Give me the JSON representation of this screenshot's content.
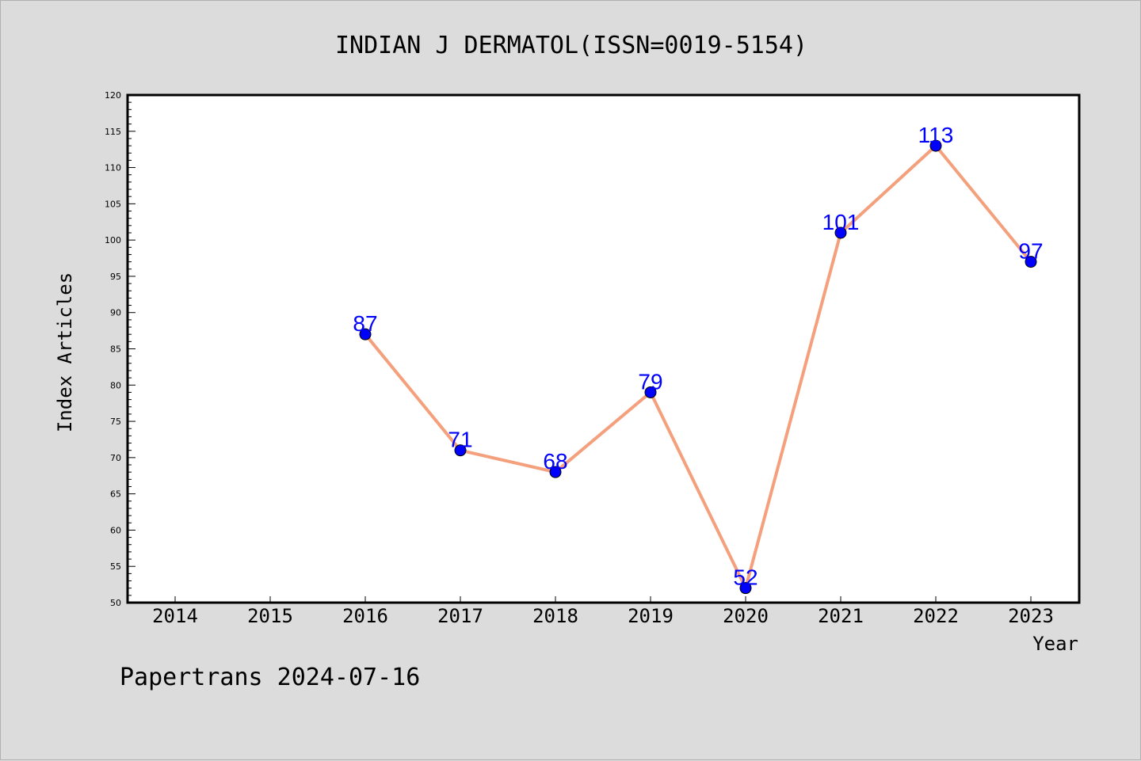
{
  "chart_data": {
    "type": "line",
    "title": "INDIAN J DERMATOL(ISSN=0019-5154)",
    "xlabel": "Year",
    "ylabel": "Index Articles",
    "categories": [
      "2014",
      "2015",
      "2016",
      "2017",
      "2018",
      "2019",
      "2020",
      "2021",
      "2022",
      "2023"
    ],
    "ylim": [
      50,
      120
    ],
    "yticks": [
      50,
      55,
      60,
      65,
      70,
      75,
      80,
      85,
      90,
      95,
      100,
      105,
      110,
      115,
      120
    ],
    "series": [
      {
        "x": [
          "2016",
          "2017",
          "2018",
          "2019",
          "2020",
          "2021",
          "2022",
          "2023"
        ],
        "values": [
          87,
          71,
          68,
          79,
          52,
          101,
          113,
          97
        ]
      }
    ],
    "grid": false,
    "legend": "none"
  },
  "footer": "Papertrans 2024-07-16",
  "colors": {
    "background": "#dcdcdc",
    "plot_background": "#ffffff",
    "line": "#f4a07c",
    "marker": "#0000ff",
    "data_label": "#0000ff"
  }
}
